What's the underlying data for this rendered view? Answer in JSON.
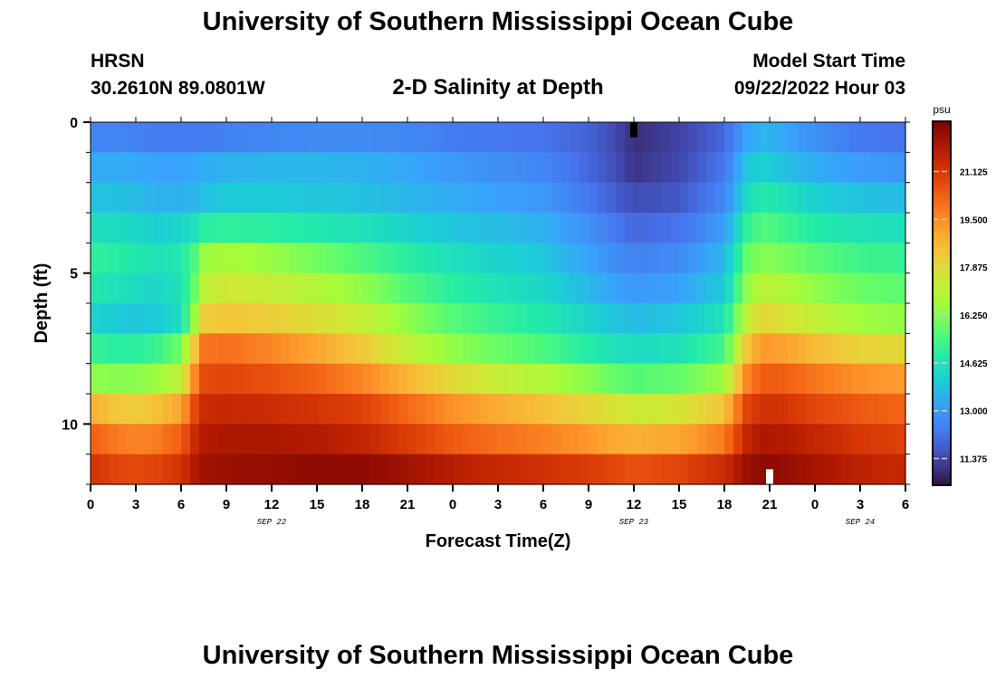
{
  "header": {
    "title": "University of Southern Mississippi Ocean Cube",
    "station": "HRSN",
    "coordinates": "30.2610N  89.0801W",
    "subtitle": "2-D Salinity at Depth",
    "model_start_label": "Model Start Time",
    "model_start_value": "09/22/2022 Hour 03",
    "title_repeat": "University of Southern Mississippi Ocean Cube"
  },
  "chart_data": {
    "type": "heatmap",
    "title": "2-D Salinity at Depth",
    "xlabel": "Forecast Time(Z)",
    "ylabel": "Depth (ft)",
    "x_ticks": [
      "0",
      "3",
      "6",
      "9",
      "12",
      "15",
      "18",
      "21",
      "0",
      "3",
      "6",
      "9",
      "12",
      "15",
      "18",
      "21",
      "0",
      "3",
      "6"
    ],
    "x_hours_range": [
      0,
      54
    ],
    "date_labels": [
      {
        "text": "SEP 22",
        "hour": 12
      },
      {
        "text": "SEP 23",
        "hour": 36
      },
      {
        "text": "SEP 24",
        "hour": 51
      }
    ],
    "y_ticks": [
      "0",
      "5",
      "10"
    ],
    "y_tick_values": [
      0,
      5,
      10
    ],
    "ylim": [
      0,
      12
    ],
    "y_inverted": true,
    "depth_layers": 12,
    "colorbar": {
      "unit": "psu",
      "range": [
        10.5,
        22.8
      ],
      "ticks": [
        "21.125",
        "19.500",
        "17.875",
        "16.250",
        "14.625",
        "13.000",
        "11.375"
      ],
      "tick_values": [
        21.125,
        19.5,
        17.875,
        16.25,
        14.625,
        13.0,
        11.375
      ]
    },
    "value_anchors_hours": [
      0,
      1.5,
      3,
      4.5,
      6,
      7,
      7.5,
      9,
      12,
      15,
      18,
      21,
      24,
      27,
      30,
      33,
      34.5,
      36,
      39,
      42,
      43.5,
      44.5,
      46,
      48,
      51,
      54
    ],
    "values": [
      [
        12.6,
        12.6,
        12.5,
        12.4,
        12.4,
        12.4,
        12.4,
        12.5,
        12.6,
        12.7,
        12.7,
        12.6,
        12.4,
        12.3,
        12.2,
        11.9,
        11.5,
        11.0,
        11.3,
        12.0,
        13.2,
        13.6,
        13.3,
        12.8,
        12.3,
        12.2
      ],
      [
        13.4,
        13.4,
        13.3,
        13.2,
        13.2,
        13.3,
        13.4,
        13.5,
        13.6,
        13.6,
        13.5,
        13.3,
        13.0,
        12.8,
        12.6,
        12.0,
        11.6,
        11.1,
        11.4,
        12.3,
        13.9,
        14.1,
        13.8,
        13.4,
        13.1,
        12.9
      ],
      [
        13.8,
        13.8,
        13.7,
        13.5,
        13.5,
        13.6,
        13.8,
        14.0,
        14.0,
        13.9,
        13.8,
        13.6,
        13.4,
        13.2,
        13.0,
        12.3,
        11.9,
        11.5,
        11.7,
        12.6,
        14.4,
        14.9,
        14.6,
        14.1,
        13.8,
        13.7
      ],
      [
        14.5,
        14.4,
        14.3,
        14.1,
        14.2,
        14.6,
        15.0,
        15.1,
        15.0,
        14.8,
        14.6,
        14.2,
        13.9,
        13.7,
        13.5,
        12.8,
        12.4,
        12.0,
        12.2,
        13.1,
        15.1,
        15.6,
        15.3,
        14.9,
        14.6,
        14.5
      ],
      [
        15.1,
        15.0,
        14.8,
        14.6,
        14.8,
        15.6,
        16.5,
        16.8,
        16.5,
        16.0,
        15.5,
        15.0,
        14.5,
        14.2,
        13.9,
        13.2,
        12.8,
        12.5,
        12.7,
        13.6,
        15.8,
        16.3,
        16.1,
        15.7,
        15.3,
        15.2
      ],
      [
        14.8,
        14.6,
        14.4,
        14.3,
        14.6,
        16.0,
        17.1,
        17.5,
        17.3,
        16.9,
        16.4,
        15.6,
        15.0,
        14.6,
        14.3,
        13.6,
        13.3,
        13.0,
        13.2,
        14.0,
        16.4,
        17.1,
        16.9,
        16.4,
        15.9,
        15.7
      ],
      [
        14.2,
        14.0,
        13.9,
        14.0,
        14.5,
        16.8,
        18.2,
        18.4,
        18.2,
        17.8,
        17.3,
        16.4,
        15.6,
        15.2,
        14.8,
        14.2,
        13.9,
        13.7,
        13.9,
        14.6,
        17.2,
        18.0,
        17.7,
        17.2,
        16.6,
        16.4
      ],
      [
        15.2,
        15.0,
        15.0,
        15.3,
        16.0,
        18.6,
        19.9,
        20.0,
        19.6,
        19.0,
        18.3,
        17.2,
        16.4,
        15.9,
        15.5,
        14.9,
        14.6,
        14.4,
        14.6,
        15.4,
        18.4,
        19.3,
        19.1,
        18.6,
        18.1,
        17.9
      ],
      [
        16.4,
        16.3,
        16.3,
        16.6,
        17.2,
        19.8,
        20.7,
        20.8,
        20.6,
        20.2,
        19.6,
        18.7,
        17.9,
        17.3,
        16.9,
        16.3,
        15.9,
        15.6,
        15.8,
        16.6,
        19.6,
        20.4,
        20.3,
        19.9,
        19.4,
        19.2
      ],
      [
        18.8,
        18.4,
        18.2,
        18.5,
        19.0,
        20.9,
        21.4,
        21.5,
        21.4,
        21.2,
        20.9,
        20.1,
        19.4,
        18.9,
        18.5,
        18.0,
        17.7,
        17.4,
        17.6,
        18.4,
        20.8,
        21.3,
        21.2,
        20.8,
        20.4,
        20.2
      ],
      [
        20.3,
        19.9,
        19.6,
        19.8,
        20.3,
        21.6,
        21.9,
        22.0,
        22.0,
        21.9,
        21.6,
        21.0,
        20.4,
        20.0,
        19.7,
        19.3,
        19.0,
        18.8,
        19.0,
        19.8,
        21.6,
        22.0,
        21.9,
        21.6,
        21.1,
        20.9
      ],
      [
        21.2,
        20.9,
        20.7,
        20.9,
        21.2,
        22.0,
        22.2,
        22.3,
        22.4,
        22.5,
        22.5,
        22.2,
        21.8,
        21.5,
        21.3,
        21.0,
        20.8,
        20.6,
        20.8,
        21.4,
        22.3,
        22.5,
        22.4,
        22.1,
        21.7,
        21.5
      ]
    ],
    "markers": [
      {
        "hour": 36,
        "depth_top": 0,
        "depth_bottom": 0.5,
        "color": "#000000"
      },
      {
        "hour": 45,
        "depth_top": 11.5,
        "depth_bottom": 12,
        "color": "#ffffff"
      }
    ]
  }
}
